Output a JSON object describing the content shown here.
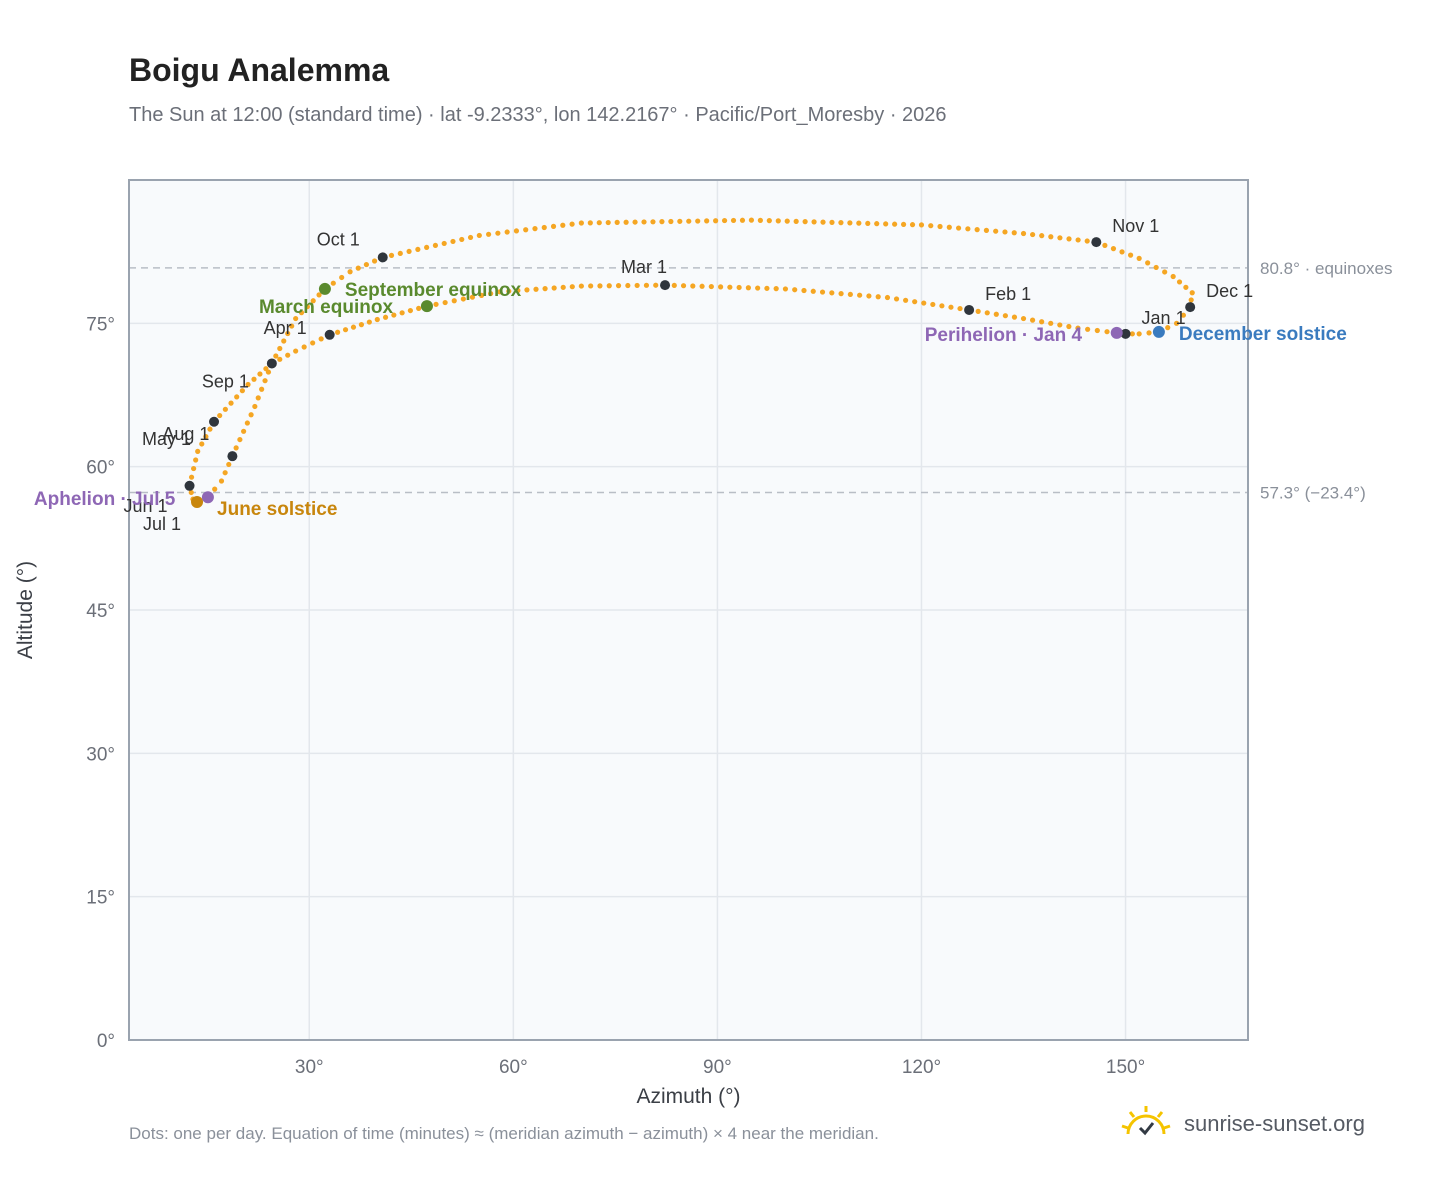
{
  "title": "Boigu Analemma",
  "subtitle": "The Sun at 12:00 (standard time) · lat -9.2333°, lon 142.2167° · Pacific/Port_Moresby · 2026",
  "footnote": "Dots: one per day. Equation of time (minutes) ≈ (meridian azimuth − azimuth) × 4 near the meridian.",
  "brand": {
    "text": "sunrise-sunset.org",
    "icon": "sun-logo-icon"
  },
  "colors": {
    "curve": "#f5a623",
    "month_marker": "#2f353c",
    "equinox": "#5a8a2e",
    "june_solstice": "#c8860d",
    "december_solstice": "#3a7bbf",
    "apsis": "#8e67b5",
    "plot_bg": "#f8fafc",
    "grid": "#e3e7ec",
    "frame": "#9aa3af",
    "ref_line": "#b9bec6"
  },
  "chart_data": {
    "type": "scatter",
    "title": "Boigu Analemma",
    "xlabel": "Azimuth (°)",
    "ylabel": "Altitude (°)",
    "xlim": [
      3.5,
      168
    ],
    "ylim": [
      0,
      90
    ],
    "x_ticks": [
      30,
      60,
      90,
      120,
      150
    ],
    "x_tick_labels": [
      "30°",
      "60°",
      "90°",
      "120°",
      "150°"
    ],
    "y_ticks": [
      0,
      15,
      30,
      45,
      60,
      75
    ],
    "y_tick_labels": [
      "0°",
      "15°",
      "30°",
      "45°",
      "60°",
      "75°"
    ],
    "grid": true,
    "reference_lines": [
      {
        "y": 80.8,
        "label": "80.8° · equinoxes"
      },
      {
        "y": 57.3,
        "label": "57.3° (−23.4°)"
      }
    ],
    "month_markers": [
      {
        "label": "Jan 1",
        "x": 150.0,
        "y": 73.9
      },
      {
        "label": "Feb 1",
        "x": 127.0,
        "y": 76.4
      },
      {
        "label": "Mar 1",
        "x": 82.3,
        "y": 79.0
      },
      {
        "label": "Apr 1",
        "x": 33.0,
        "y": 73.8
      },
      {
        "label": "May 1",
        "x": 16.0,
        "y": 64.7
      },
      {
        "label": "Jun 1",
        "x": 12.4,
        "y": 58.0
      },
      {
        "label": "Jul 1",
        "x": 13.5,
        "y": 56.3
      },
      {
        "label": "Aug 1",
        "x": 18.7,
        "y": 61.1
      },
      {
        "label": "Sep 1",
        "x": 24.5,
        "y": 70.8
      },
      {
        "label": "Oct 1",
        "x": 40.8,
        "y": 81.9
      },
      {
        "label": "Nov 1",
        "x": 145.7,
        "y": 83.5
      },
      {
        "label": "Dec 1",
        "x": 159.5,
        "y": 76.7
      }
    ],
    "events": [
      {
        "label": "March equinox",
        "x": 47.3,
        "y": 76.8,
        "color": "#5a8a2e"
      },
      {
        "label": "September equinox",
        "x": 32.3,
        "y": 78.6,
        "color": "#5a8a2e"
      },
      {
        "label": "June solstice",
        "x": 13.5,
        "y": 56.3,
        "color": "#c8860d"
      },
      {
        "label": "December solstice",
        "x": 154.9,
        "y": 74.1,
        "color": "#3a7bbf"
      },
      {
        "label": "Aphelion · Jul 5",
        "x": 15.1,
        "y": 56.8,
        "color": "#8e67b5"
      },
      {
        "label": "Perihelion · Jan 4",
        "x": 148.7,
        "y": 74.0,
        "color": "#8e67b5"
      }
    ],
    "curve": [
      [
        150.0,
        73.9
      ],
      [
        148.7,
        74.0
      ],
      [
        143.0,
        74.5
      ],
      [
        135.0,
        75.5
      ],
      [
        127.0,
        76.4
      ],
      [
        115.0,
        77.7
      ],
      [
        100.0,
        78.6
      ],
      [
        82.3,
        79.0
      ],
      [
        70.0,
        78.9
      ],
      [
        58.0,
        78.3
      ],
      [
        47.3,
        76.8
      ],
      [
        40.0,
        75.4
      ],
      [
        33.0,
        73.8
      ],
      [
        28.0,
        72.1
      ],
      [
        24.5,
        70.8
      ],
      [
        21.0,
        68.6
      ],
      [
        16.0,
        64.7
      ],
      [
        13.6,
        61.6
      ],
      [
        12.4,
        58.0
      ],
      [
        12.9,
        56.6
      ],
      [
        13.5,
        56.3
      ],
      [
        15.1,
        56.8
      ],
      [
        17.1,
        58.5
      ],
      [
        18.7,
        61.1
      ],
      [
        22.0,
        66.3
      ],
      [
        24.5,
        70.8
      ],
      [
        28.0,
        75.5
      ],
      [
        32.3,
        78.6
      ],
      [
        36.0,
        80.4
      ],
      [
        40.8,
        81.9
      ],
      [
        55.0,
        84.2
      ],
      [
        70.0,
        85.5
      ],
      [
        95.0,
        85.8
      ],
      [
        120.0,
        85.3
      ],
      [
        135.0,
        84.4
      ],
      [
        145.7,
        83.5
      ],
      [
        152.0,
        81.8
      ],
      [
        157.0,
        79.9
      ],
      [
        159.8,
        78.2
      ],
      [
        159.5,
        76.7
      ],
      [
        157.5,
        75.0
      ],
      [
        154.9,
        74.1
      ],
      [
        152.0,
        73.9
      ],
      [
        150.0,
        73.9
      ]
    ]
  }
}
